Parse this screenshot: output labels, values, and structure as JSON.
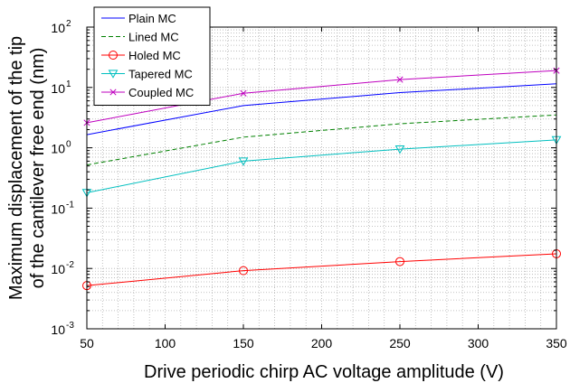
{
  "chart_data": {
    "type": "line",
    "xlabel": "Drive periodic chirp AC voltage amplitude (V)",
    "ylabel_line1": "Maximum displacement of the tip",
    "ylabel_line2": "of the cantilever free end (nm)",
    "x_ticks": [
      "50",
      "100",
      "150",
      "200",
      "250",
      "300",
      "350"
    ],
    "y_tick_base": "10",
    "y_tick_exponents": [
      "-3",
      "-2",
      "-1",
      "0",
      "1",
      "2"
    ],
    "xlim": [
      50,
      350
    ],
    "ylim": [
      0.001,
      100
    ],
    "yscale": "log",
    "grid": true,
    "legend_position": "top-left",
    "series": [
      {
        "name": "Plain MC",
        "color": "#0000ff",
        "line_style": "solid",
        "marker": "none",
        "x": [
          50,
          150,
          250,
          350
        ],
        "y": [
          1.65,
          5.0,
          8.2,
          11.5
        ]
      },
      {
        "name": "Lined MC",
        "color": "#008000",
        "line_style": "dashed",
        "marker": "none",
        "x": [
          50,
          150,
          250,
          350
        ],
        "y": [
          0.52,
          1.5,
          2.5,
          3.5
        ]
      },
      {
        "name": "Holed MC",
        "color": "#ff0000",
        "line_style": "solid",
        "marker": "circle",
        "x": [
          50,
          150,
          250,
          350
        ],
        "y": [
          0.0052,
          0.0092,
          0.013,
          0.0175
        ]
      },
      {
        "name": "Tapered MC",
        "color": "#00bfbf",
        "line_style": "solid",
        "marker": "triangle-down",
        "x": [
          50,
          150,
          250,
          350
        ],
        "y": [
          0.18,
          0.6,
          0.95,
          1.35
        ]
      },
      {
        "name": "Coupled MC",
        "color": "#bf00bf",
        "line_style": "solid",
        "marker": "x",
        "x": [
          50,
          150,
          250,
          350
        ],
        "y": [
          2.6,
          8.0,
          13.5,
          19.0
        ]
      }
    ]
  }
}
